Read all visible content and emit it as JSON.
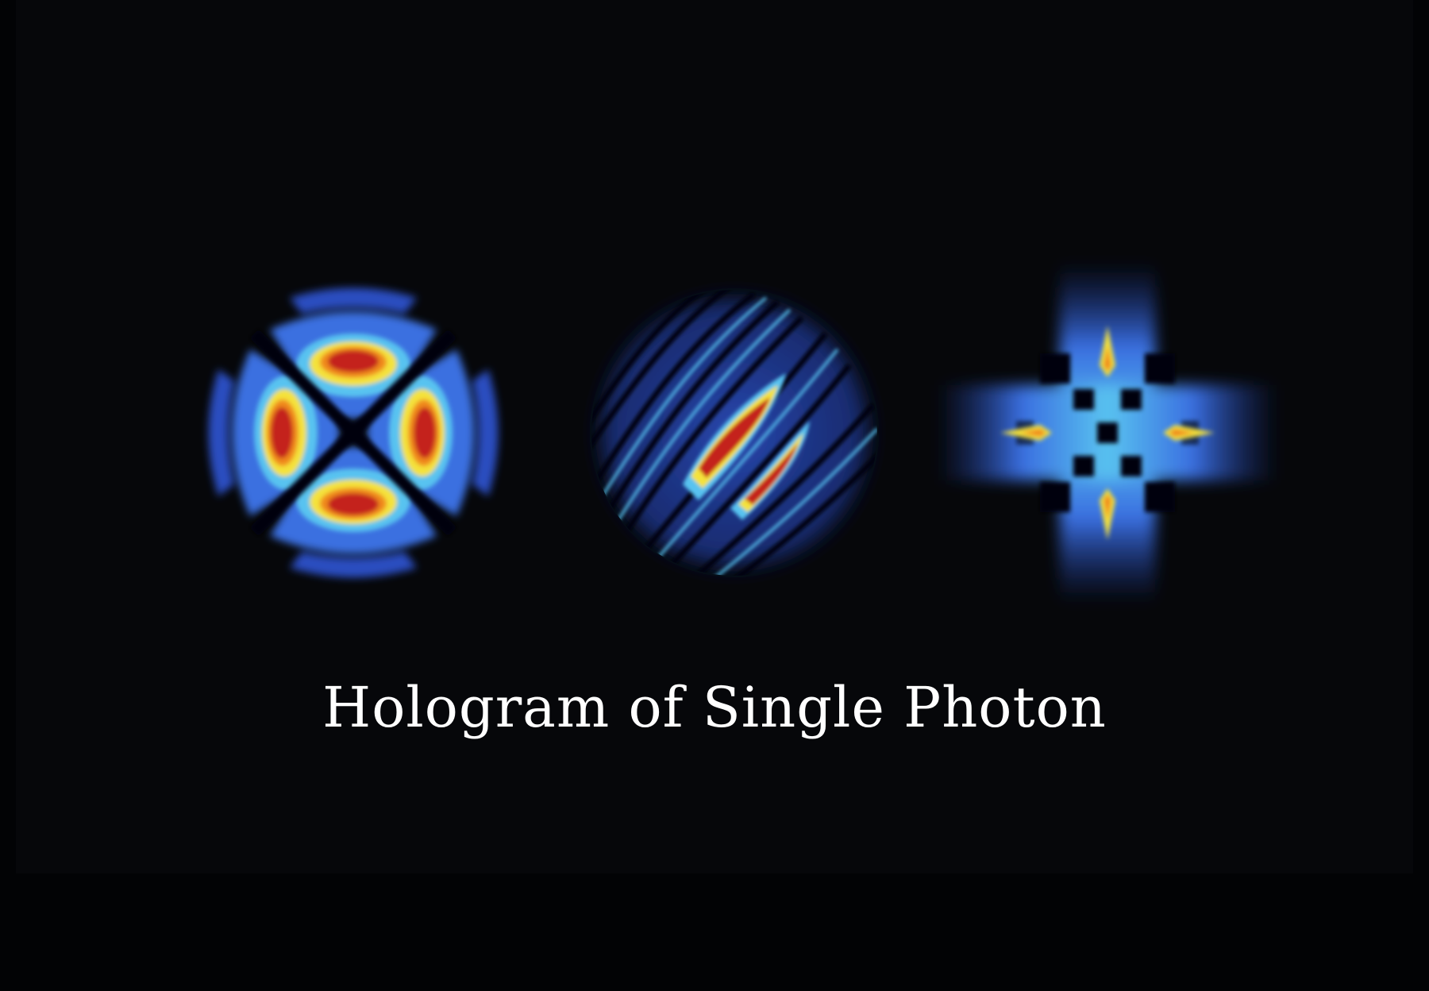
{
  "caption": "Hologram of Single Photon",
  "holograms": [
    {
      "name": "hermite-gauss-four-lobe-pattern"
    },
    {
      "name": "swirled-fringe-disc-pattern"
    },
    {
      "name": "cross-checkerboard-pattern"
    }
  ],
  "colors": {
    "background": "#06070a",
    "outer": "#020305",
    "dark_blue": "#1f3a9a",
    "blue": "#3a6fe0",
    "light_blue": "#59c3f0",
    "yellow": "#f4e23a",
    "orange": "#f08a1c",
    "red": "#c4201c",
    "caption_text": "#ffffff"
  }
}
